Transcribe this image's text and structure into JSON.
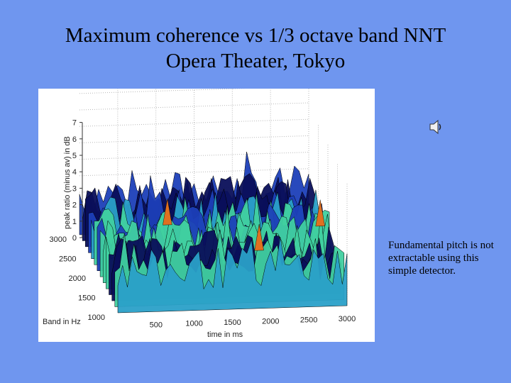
{
  "slide": {
    "title_line1": "Maximum coherence vs 1/3 octave band NNT",
    "title_line2": "Opera Theater, Tokyo",
    "note": "Fundamental pitch is not extractable using this simple detector."
  },
  "speaker": {
    "icon": "speaker-icon"
  },
  "chart_data": {
    "type": "surface",
    "zlabel": "peak ratio (minus av) in dB",
    "ylabel": "Band in Hz",
    "xlabel": "time in ms",
    "z_ticks": [
      "0",
      "1",
      "2",
      "3",
      "4",
      "5",
      "6",
      "7"
    ],
    "y_ticks": [
      "1000",
      "1500",
      "2000",
      "2500",
      "3000"
    ],
    "x_ticks": [
      "500",
      "1000",
      "1500",
      "2000",
      "2500",
      "3000"
    ],
    "zlim": [
      0,
      7
    ],
    "ylim": [
      1000,
      3000
    ],
    "xlim": [
      0,
      3000
    ],
    "grid": true,
    "colormap": [
      "#0a0f5a",
      "#1c3fb8",
      "#2aa0c8",
      "#40d0a0",
      "#e0d040",
      "#e07020"
    ]
  }
}
